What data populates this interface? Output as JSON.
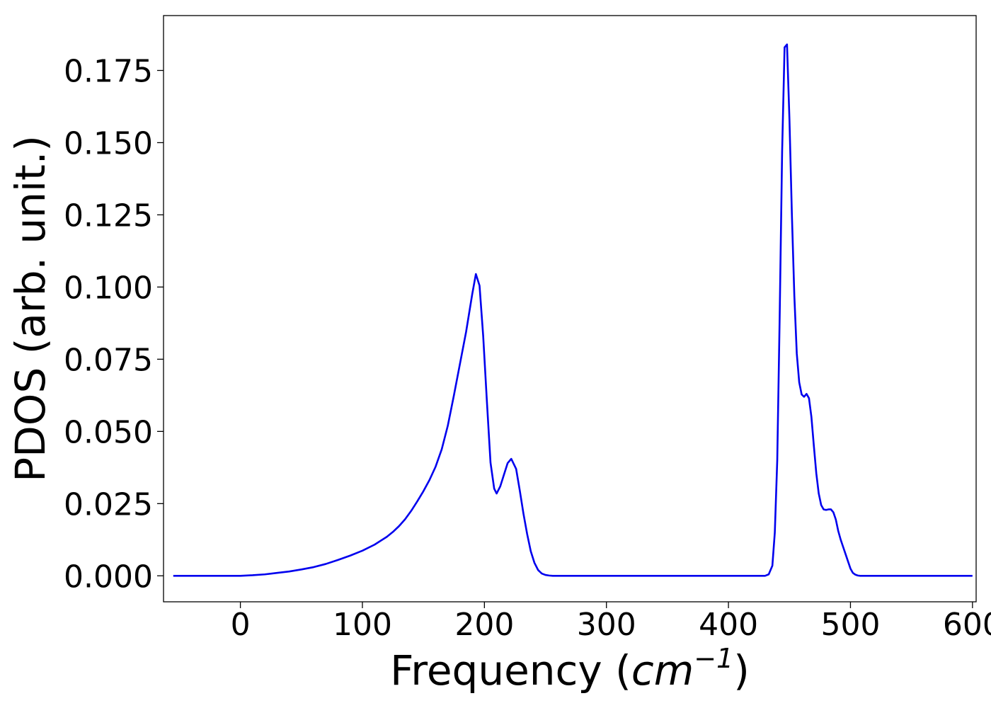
{
  "chart_data": {
    "type": "line",
    "title": "",
    "xlabel": "Frequency",
    "xlabel_unit": "cm",
    "xlabel_unit_exp": "−1",
    "ylabel": "PDOS (arb. unit.)",
    "xlim": [
      -63,
      603
    ],
    "ylim": [
      -0.009,
      0.194
    ],
    "xticks": [
      0,
      100,
      200,
      300,
      400,
      500,
      600
    ],
    "yticks": [
      0.0,
      0.025,
      0.05,
      0.075,
      0.1,
      0.125,
      0.15,
      0.175
    ],
    "ytick_labels": [
      "0.000",
      "0.025",
      "0.050",
      "0.075",
      "0.100",
      "0.125",
      "0.150",
      "0.175"
    ],
    "grid": false,
    "legend": "none",
    "series": [
      {
        "color": "#0000ee",
        "x": [
          -55,
          0,
          10,
          20,
          30,
          40,
          50,
          60,
          70,
          80,
          90,
          100,
          110,
          120,
          125,
          130,
          135,
          140,
          145,
          150,
          155,
          160,
          165,
          170,
          175,
          180,
          185,
          190,
          193,
          196,
          199,
          202,
          205,
          208,
          210,
          213,
          216,
          219,
          222,
          226,
          229,
          232,
          235,
          238,
          241,
          244,
          247,
          250,
          253,
          256,
          260,
          270,
          300,
          350,
          400,
          430,
          433,
          436,
          438,
          440,
          442,
          444,
          446,
          448,
          450,
          452,
          454,
          456,
          458,
          460,
          462,
          464,
          466,
          468,
          470,
          472,
          474,
          476,
          478,
          480,
          482,
          484,
          486,
          488,
          490,
          492,
          494,
          496,
          498,
          500,
          502,
          504,
          506,
          508,
          510,
          514,
          517,
          520,
          523,
          526,
          530,
          535,
          540,
          545,
          548,
          551,
          555,
          560,
          570,
          600
        ],
        "y": [
          0,
          0,
          0.0002,
          0.0005,
          0.001,
          0.0015,
          0.0022,
          0.003,
          0.0041,
          0.0055,
          0.007,
          0.0087,
          0.0108,
          0.0135,
          0.0152,
          0.0172,
          0.0196,
          0.0225,
          0.0258,
          0.0293,
          0.0332,
          0.0378,
          0.0438,
          0.052,
          0.0625,
          0.0735,
          0.0845,
          0.0975,
          0.1045,
          0.1005,
          0.083,
          0.0606,
          0.0392,
          0.0302,
          0.0285,
          0.031,
          0.035,
          0.039,
          0.0405,
          0.037,
          0.0295,
          0.0215,
          0.0145,
          0.0085,
          0.0045,
          0.002,
          0.0008,
          0.0003,
          0.0001,
          0,
          0,
          0,
          0,
          0,
          0,
          0,
          0.0005,
          0.0035,
          0.015,
          0.04,
          0.09,
          0.147,
          0.183,
          0.184,
          0.158,
          0.125,
          0.097,
          0.077,
          0.067,
          0.0628,
          0.062,
          0.063,
          0.0615,
          0.055,
          0.045,
          0.0355,
          0.0285,
          0.0245,
          0.023,
          0.0228,
          0.023,
          0.023,
          0.022,
          0.0195,
          0.0155,
          0.0125,
          0.01,
          0.0075,
          0.005,
          0.0025,
          0.001,
          0.0004,
          0.0001,
          0,
          0,
          0,
          0,
          0,
          0,
          0,
          0,
          0,
          0,
          0,
          0,
          0,
          0,
          0,
          0,
          0
        ],
        "x_extra_note_removed": true
      }
    ]
  }
}
